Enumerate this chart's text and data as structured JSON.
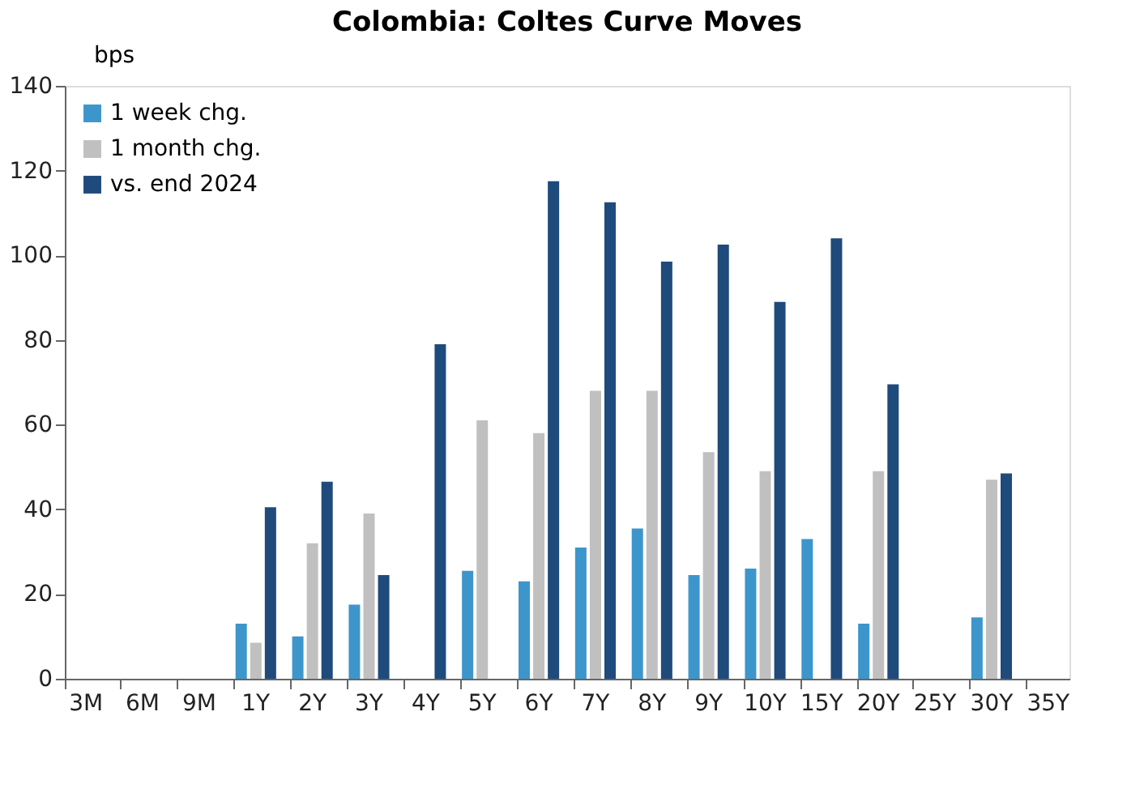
{
  "chart_data": {
    "type": "bar",
    "title": "Colombia: Coltes Curve Moves",
    "ylabel": "bps",
    "categories": [
      "3M",
      "6M",
      "9M",
      "1Y",
      "2Y",
      "3Y",
      "4Y",
      "5Y",
      "6Y",
      "7Y",
      "8Y",
      "9Y",
      "10Y",
      "15Y",
      "20Y",
      "25Y",
      "30Y",
      "35Y"
    ],
    "series": [
      {
        "name": "1 week chg.",
        "color": "#3d96cb",
        "values": [
          null,
          null,
          null,
          13,
          10,
          17.5,
          null,
          25.5,
          23,
          31,
          35.5,
          24.5,
          26,
          33,
          13,
          null,
          14.5,
          null
        ]
      },
      {
        "name": "1 month chg.",
        "color": "#c0c0c0",
        "values": [
          null,
          null,
          null,
          8.5,
          32,
          39,
          null,
          61,
          58,
          68,
          68,
          53.5,
          49,
          null,
          49,
          null,
          47,
          null
        ]
      },
      {
        "name": "vs. end 2024",
        "color": "#1f4a7c",
        "values": [
          null,
          null,
          null,
          40.5,
          46.5,
          24.5,
          79,
          null,
          117.5,
          112.5,
          98.5,
          102.5,
          89,
          104,
          69.5,
          null,
          48.5,
          null
        ]
      }
    ],
    "ylim": [
      0,
      140
    ],
    "yticks": [
      0,
      20,
      40,
      60,
      80,
      100,
      120,
      140
    ],
    "grid": false,
    "legend": "top left"
  }
}
